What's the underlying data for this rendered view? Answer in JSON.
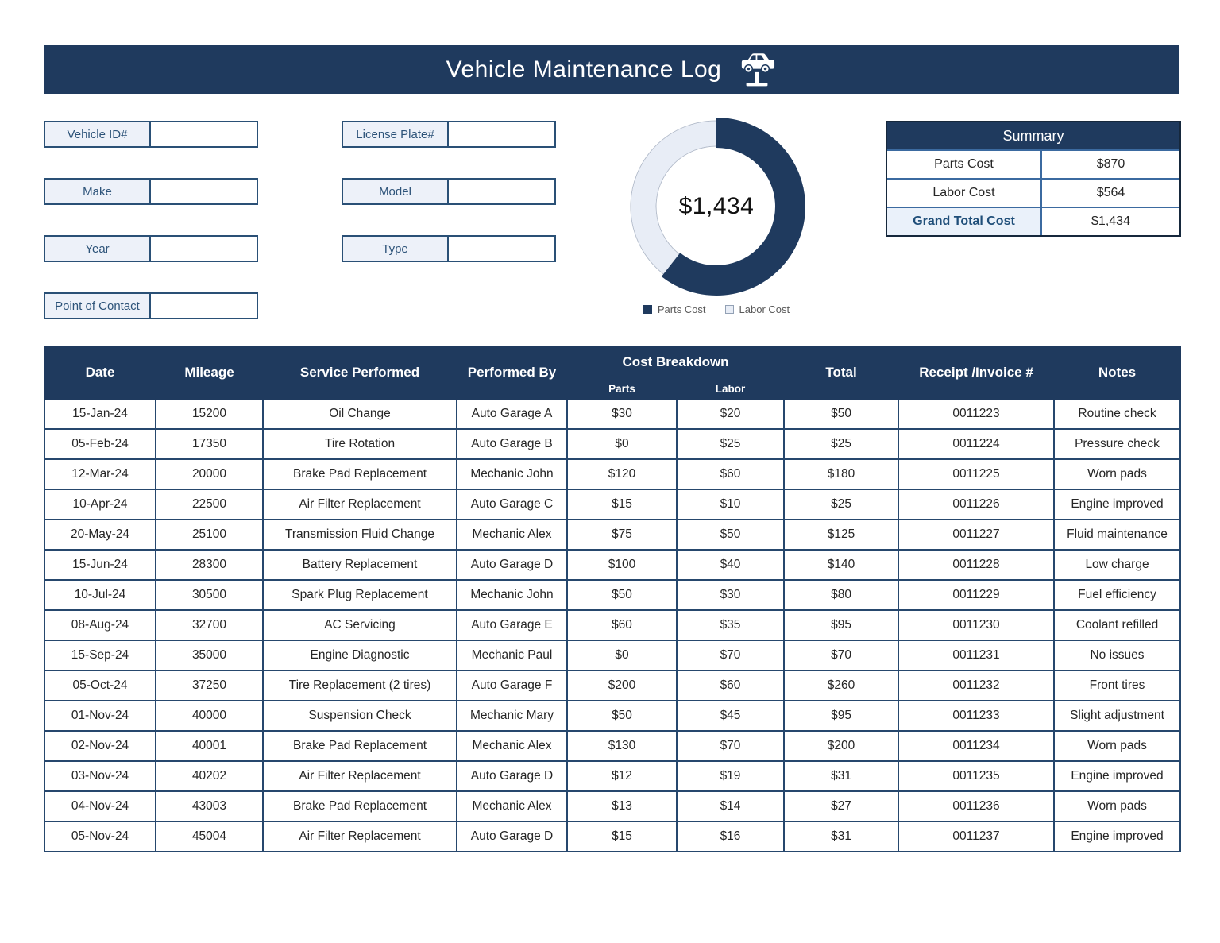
{
  "title": "Vehicle Maintenance Log",
  "banner_icon": "car-lift-icon",
  "colors": {
    "navy": "#1f3a5e",
    "light_blue_fill": "#edf1f9",
    "grand_total_text": "#1f4e79"
  },
  "form": {
    "fields": [
      {
        "label": "Vehicle ID#",
        "value": ""
      },
      {
        "label": "License Plate#",
        "value": ""
      },
      {
        "label": "Make",
        "value": ""
      },
      {
        "label": "Model",
        "value": ""
      },
      {
        "label": "Year",
        "value": ""
      },
      {
        "label": "Type",
        "value": ""
      },
      {
        "label": "Point of Contact",
        "value": ""
      }
    ]
  },
  "chart_data": {
    "type": "pie",
    "subtype": "donut",
    "center_label": "$1,434",
    "legend_position": "bottom",
    "slices": [
      {
        "label": "Parts Cost",
        "value": 870,
        "color": "#1f3a5e"
      },
      {
        "label": "Labor Cost",
        "value": 564,
        "color": "#e8edf6"
      }
    ]
  },
  "summary": {
    "title": "Summary",
    "rows": [
      {
        "label": "Parts Cost",
        "value": "$870"
      },
      {
        "label": "Labor Cost",
        "value": "$564"
      },
      {
        "label": "Grand Total Cost",
        "value": "$1,434"
      }
    ]
  },
  "log_table": {
    "group_header": "Cost Breakdown",
    "columns": [
      "Date",
      "Mileage",
      "Service Performed",
      "Performed By",
      "Parts",
      "Labor",
      "Total",
      "Receipt /Invoice #",
      "Notes"
    ],
    "rows": [
      [
        "15-Jan-24",
        "15200",
        "Oil Change",
        "Auto Garage A",
        "$30",
        "$20",
        "$50",
        "0011223",
        "Routine check"
      ],
      [
        "05-Feb-24",
        "17350",
        "Tire Rotation",
        "Auto Garage B",
        "$0",
        "$25",
        "$25",
        "0011224",
        "Pressure check"
      ],
      [
        "12-Mar-24",
        "20000",
        "Brake Pad Replacement",
        "Mechanic John",
        "$120",
        "$60",
        "$180",
        "0011225",
        "Worn pads"
      ],
      [
        "10-Apr-24",
        "22500",
        "Air Filter Replacement",
        "Auto Garage C",
        "$15",
        "$10",
        "$25",
        "0011226",
        "Engine improved"
      ],
      [
        "20-May-24",
        "25100",
        "Transmission Fluid Change",
        "Mechanic Alex",
        "$75",
        "$50",
        "$125",
        "0011227",
        "Fluid maintenance"
      ],
      [
        "15-Jun-24",
        "28300",
        "Battery Replacement",
        "Auto Garage D",
        "$100",
        "$40",
        "$140",
        "0011228",
        "Low charge"
      ],
      [
        "10-Jul-24",
        "30500",
        "Spark Plug Replacement",
        "Mechanic John",
        "$50",
        "$30",
        "$80",
        "0011229",
        "Fuel efficiency"
      ],
      [
        "08-Aug-24",
        "32700",
        "AC Servicing",
        "Auto Garage E",
        "$60",
        "$35",
        "$95",
        "0011230",
        "Coolant refilled"
      ],
      [
        "15-Sep-24",
        "35000",
        "Engine Diagnostic",
        "Mechanic Paul",
        "$0",
        "$70",
        "$70",
        "0011231",
        "No issues"
      ],
      [
        "05-Oct-24",
        "37250",
        "Tire Replacement (2 tires)",
        "Auto Garage F",
        "$200",
        "$60",
        "$260",
        "0011232",
        "Front tires"
      ],
      [
        "01-Nov-24",
        "40000",
        "Suspension Check",
        "Mechanic Mary",
        "$50",
        "$45",
        "$95",
        "0011233",
        "Slight adjustment"
      ],
      [
        "02-Nov-24",
        "40001",
        "Brake Pad Replacement",
        "Mechanic Alex",
        "$130",
        "$70",
        "$200",
        "0011234",
        "Worn pads"
      ],
      [
        "03-Nov-24",
        "40202",
        "Air Filter Replacement",
        "Auto Garage D",
        "$12",
        "$19",
        "$31",
        "0011235",
        "Engine improved"
      ],
      [
        "04-Nov-24",
        "43003",
        "Brake Pad Replacement",
        "Mechanic Alex",
        "$13",
        "$14",
        "$27",
        "0011236",
        "Worn pads"
      ],
      [
        "05-Nov-24",
        "45004",
        "Air Filter Replacement",
        "Auto Garage D",
        "$15",
        "$16",
        "$31",
        "0011237",
        "Engine improved"
      ]
    ]
  }
}
